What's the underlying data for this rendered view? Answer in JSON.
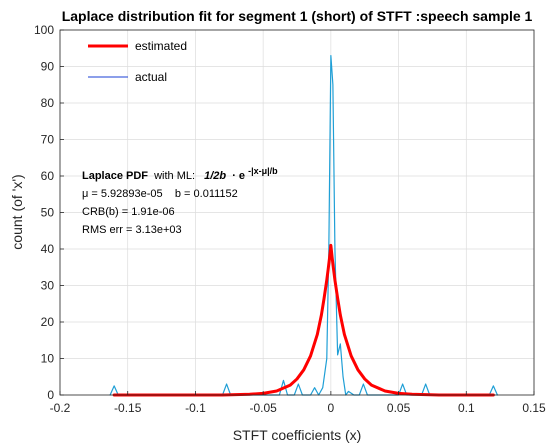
{
  "chart_data": {
    "type": "line",
    "title": "Laplace distribution fit for segment 1 (short) of STFT :speech sample 1",
    "xlabel": "STFT coefficients (x)",
    "ylabel": "count (of 'x')",
    "xlim": [
      -0.2,
      0.15
    ],
    "ylim": [
      0,
      100
    ],
    "xticks": [
      -0.2,
      -0.15,
      -0.1,
      -0.05,
      0,
      0.05,
      0.1,
      0.15
    ],
    "xtick_labels": [
      "-0.2",
      "-0.15",
      "-0.1",
      "-0.05",
      "0",
      "0.05",
      "0.1",
      "0.15"
    ],
    "yticks": [
      0,
      10,
      20,
      30,
      40,
      50,
      60,
      70,
      80,
      90,
      100
    ],
    "yticklabels": [
      "0",
      "10",
      "20",
      "30",
      "40",
      "50",
      "60",
      "70",
      "80",
      "90",
      "100"
    ],
    "grid": true,
    "legend_position": "top-left",
    "series": [
      {
        "name": "estimated",
        "color": "#ff0000",
        "x": [
          -0.16,
          -0.12,
          -0.1,
          -0.08,
          -0.06,
          -0.05,
          -0.04,
          -0.03,
          -0.025,
          -0.02,
          -0.015,
          -0.01,
          -0.007,
          -0.005,
          -0.003,
          -0.002,
          -0.001,
          0,
          0.001,
          0.002,
          0.003,
          0.005,
          0.007,
          0.01,
          0.015,
          0.02,
          0.025,
          0.03,
          0.04,
          0.05,
          0.06,
          0.08,
          0.1,
          0.12
        ],
        "y": [
          0,
          0,
          0,
          0,
          0.2,
          0.45,
          1.1,
          2.7,
          4.4,
          6.9,
          10.7,
          16.6,
          21.9,
          26.5,
          31.5,
          34.4,
          37.5,
          41,
          37.5,
          34.4,
          31.5,
          26.5,
          21.9,
          16.6,
          10.7,
          6.9,
          4.4,
          2.7,
          1.1,
          0.45,
          0.2,
          0,
          0,
          0
        ]
      },
      {
        "name": "actual",
        "color": "#1f9fd6",
        "x": [
          -0.163,
          -0.16,
          -0.157,
          -0.12,
          -0.08,
          -0.077,
          -0.074,
          -0.05,
          -0.038,
          -0.035,
          -0.032,
          -0.027,
          -0.024,
          -0.021,
          -0.015,
          -0.012,
          -0.009,
          -0.006,
          -0.003,
          -0.0015,
          0,
          0.0015,
          0.003,
          0.005,
          0.007,
          0.009,
          0.011,
          0.013,
          0.017,
          0.021,
          0.024,
          0.027,
          0.04,
          0.05,
          0.053,
          0.056,
          0.067,
          0.07,
          0.073,
          0.1,
          0.117,
          0.12,
          0.123
        ],
        "y": [
          0,
          2.5,
          0,
          0,
          0,
          3,
          0,
          0,
          0,
          4,
          0,
          0,
          3,
          0,
          0,
          2,
          0,
          2,
          10,
          40,
          93,
          85,
          40,
          11,
          14,
          5,
          0,
          1,
          0,
          0,
          3,
          0,
          0,
          0,
          3,
          0,
          0,
          3,
          0,
          0,
          0,
          2.5,
          0
        ]
      }
    ],
    "annotations": {
      "pdf_label_bold": "Laplace PDF",
      "pdf_label_rest": "with ML:",
      "formula_main": "1/2b",
      "formula_dot": "· e",
      "formula_exp": "-|x-μ|/b",
      "mu_line": "μ = 5.92893e-05    b = 0.011152",
      "crb_line": "CRB(b) = 1.91e-06",
      "rms_line": "RMS err = 3.13e+03"
    }
  }
}
